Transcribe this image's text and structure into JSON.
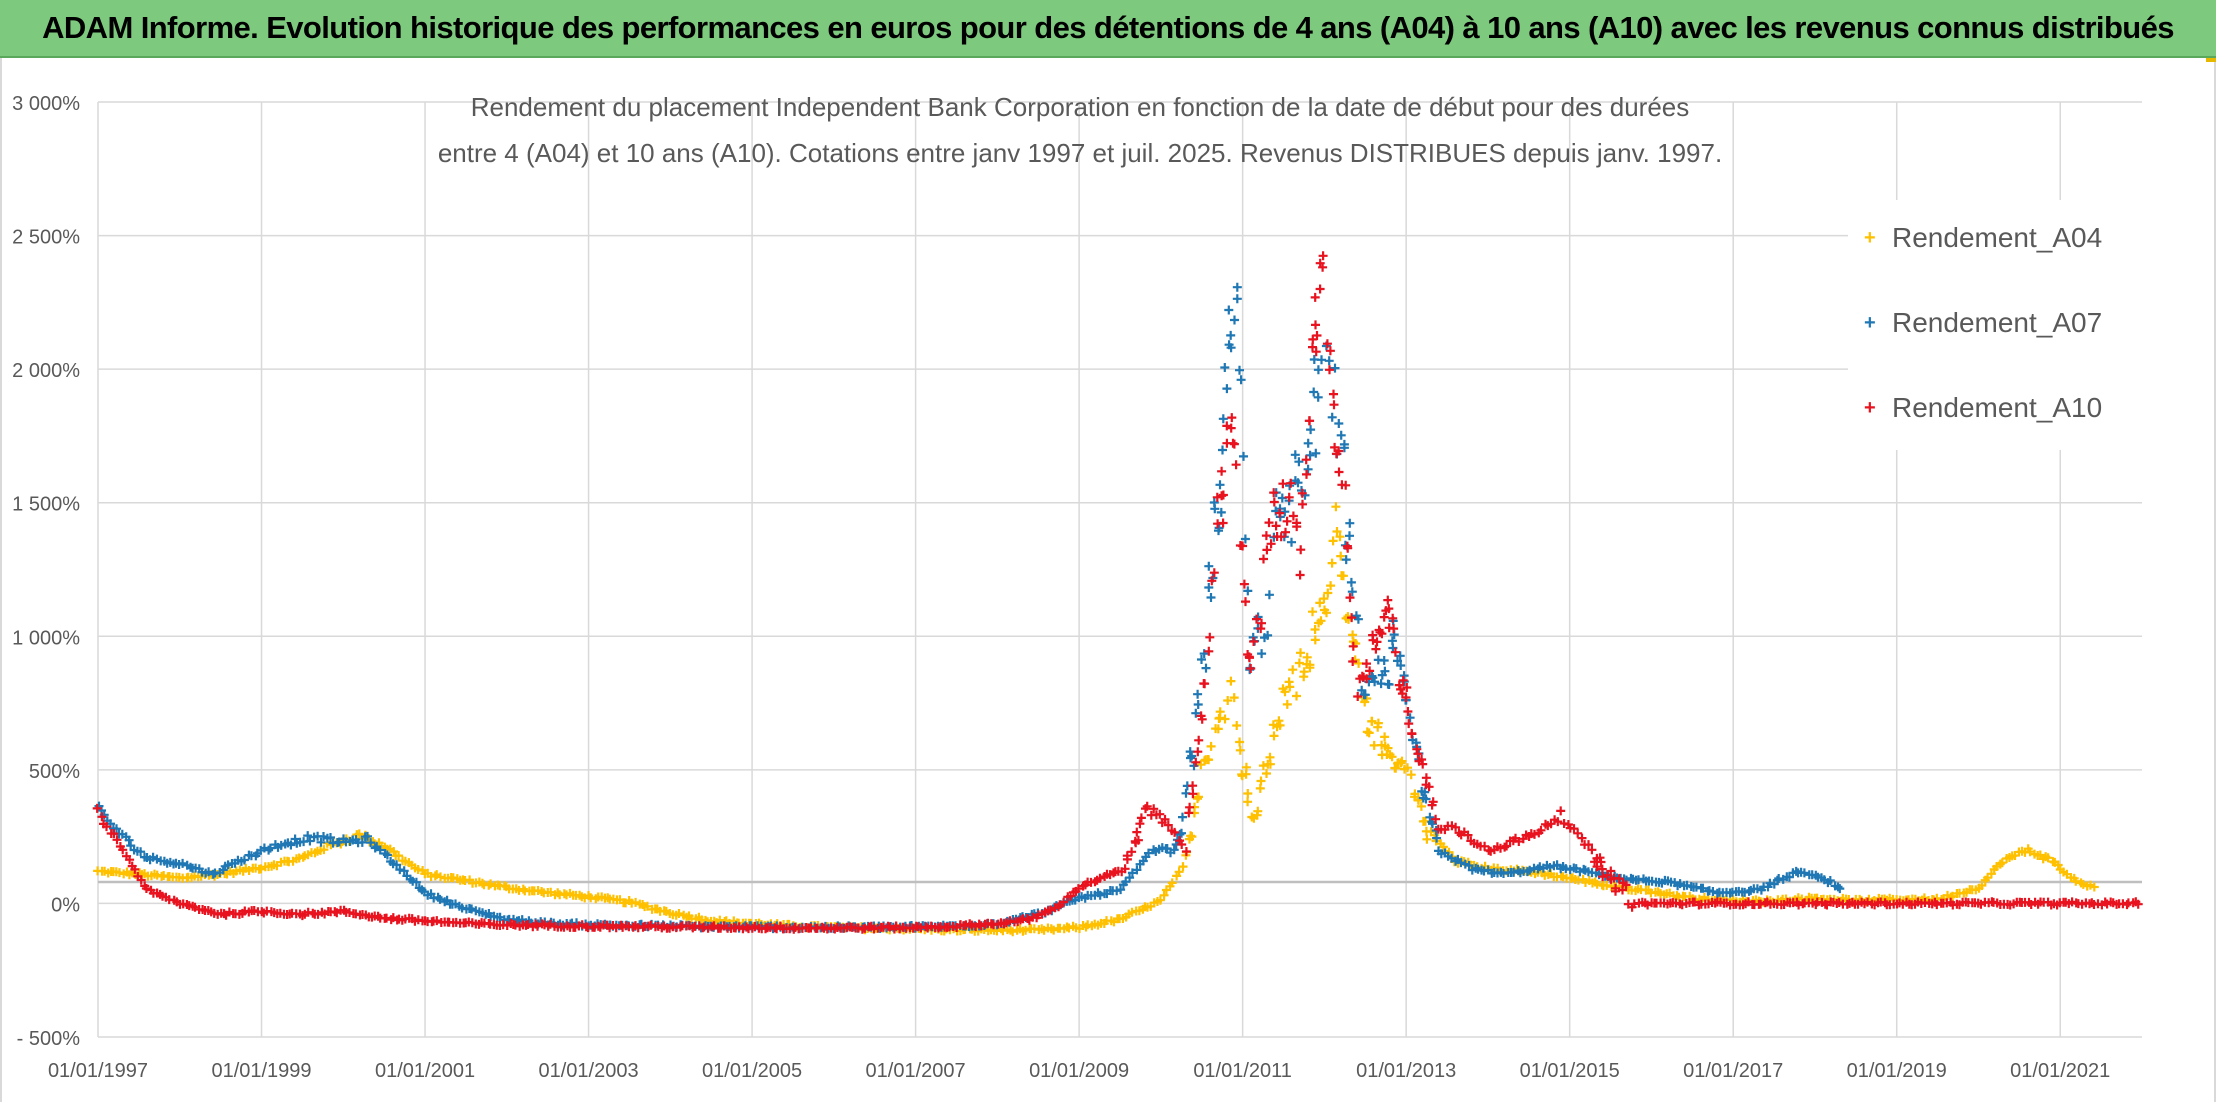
{
  "banner": {
    "title": "ADAM Informe. Evolution historique des performances en euros pour des détentions de 4 ans (A04) à 10 ans (A10) avec les revenus connus distribués"
  },
  "chart_data": {
    "type": "scatter",
    "title_line_1": "Rendement du placement Independent Bank Corporation en fonction de la date de début pour des durées",
    "title_line_2": "entre 4 (A04) et 10 ans (A10). Cotations entre janv 1997 et juil. 2025. Revenus DISTRIBUES depuis janv. 1997.",
    "xlabel": "",
    "ylabel": "",
    "x_unit": "year",
    "xlim": [
      1997.0,
      2022.0
    ],
    "ylim": [
      -500,
      3000
    ],
    "x_ticks": [
      1997,
      1999,
      2001,
      2003,
      2005,
      2007,
      2009,
      2011,
      2013,
      2015,
      2017,
      2019,
      2021
    ],
    "x_tick_labels": [
      "01/01/1997",
      "01/01/1999",
      "01/01/2001",
      "01/01/2003",
      "01/01/2005",
      "01/01/2007",
      "01/01/2009",
      "01/01/2011",
      "01/01/2013",
      "01/01/2015",
      "01/01/2017",
      "01/01/2019",
      "01/01/2021"
    ],
    "y_ticks": [
      -500,
      0,
      500,
      1000,
      1500,
      2000,
      2500,
      3000
    ],
    "y_tick_labels": [
      "- 500%",
      "0%",
      "500%",
      "1 000%",
      "1 500%",
      "2 000%",
      "2 500%",
      "3 000%"
    ],
    "grid": true,
    "marker": "+",
    "legend_position": "top-right",
    "reference_line_y": 80,
    "series": [
      {
        "name": "Rendement_A04",
        "color": "#ffc000",
        "points": [
          [
            1997.0,
            120
          ],
          [
            1997.5,
            110
          ],
          [
            1998.0,
            95
          ],
          [
            1998.5,
            110
          ],
          [
            1999.0,
            135
          ],
          [
            1999.5,
            170
          ],
          [
            1999.8,
            215
          ],
          [
            2000.2,
            255
          ],
          [
            2000.5,
            215
          ],
          [
            2000.8,
            150
          ],
          [
            2001.0,
            110
          ],
          [
            2001.5,
            85
          ],
          [
            2002.0,
            60
          ],
          [
            2002.5,
            40
          ],
          [
            2003.0,
            25
          ],
          [
            2003.5,
            5
          ],
          [
            2004.0,
            -35
          ],
          [
            2004.5,
            -65
          ],
          [
            2005.0,
            -75
          ],
          [
            2005.5,
            -85
          ],
          [
            2006.0,
            -90
          ],
          [
            2006.5,
            -93
          ],
          [
            2007.0,
            -95
          ],
          [
            2007.5,
            -100
          ],
          [
            2008.0,
            -100
          ],
          [
            2008.5,
            -100
          ],
          [
            2009.0,
            -90
          ],
          [
            2009.5,
            -60
          ],
          [
            2010.0,
            10
          ],
          [
            2010.3,
            150
          ],
          [
            2010.5,
            500
          ],
          [
            2010.7,
            680
          ],
          [
            2010.85,
            820
          ],
          [
            2011.0,
            520
          ],
          [
            2011.15,
            300
          ],
          [
            2011.3,
            560
          ],
          [
            2011.5,
            750
          ],
          [
            2011.7,
            870
          ],
          [
            2011.9,
            1050
          ],
          [
            2012.0,
            1180
          ],
          [
            2012.15,
            1300
          ],
          [
            2012.3,
            1050
          ],
          [
            2012.5,
            720
          ],
          [
            2012.7,
            580
          ],
          [
            2012.9,
            550
          ],
          [
            2013.1,
            420
          ],
          [
            2013.3,
            260
          ],
          [
            2013.6,
            160
          ],
          [
            2014.0,
            130
          ],
          [
            2014.5,
            120
          ],
          [
            2015.0,
            95
          ],
          [
            2015.5,
            65
          ],
          [
            2016.0,
            45
          ],
          [
            2016.5,
            20
          ],
          [
            2017.0,
            10
          ],
          [
            2017.5,
            10
          ],
          [
            2018.0,
            20
          ],
          [
            2018.5,
            10
          ],
          [
            2019.0,
            15
          ],
          [
            2019.5,
            15
          ],
          [
            2020.0,
            60
          ],
          [
            2020.3,
            160
          ],
          [
            2020.6,
            200
          ],
          [
            2020.9,
            160
          ],
          [
            2021.2,
            80
          ],
          [
            2021.45,
            60
          ]
        ]
      },
      {
        "name": "Rendement_A07",
        "color": "#1f77b4",
        "points": [
          [
            1997.0,
            350
          ],
          [
            1997.3,
            250
          ],
          [
            1997.6,
            170
          ],
          [
            1998.0,
            150
          ],
          [
            1998.4,
            110
          ],
          [
            1998.8,
            170
          ],
          [
            1999.2,
            220
          ],
          [
            1999.6,
            245
          ],
          [
            2000.0,
            230
          ],
          [
            2000.3,
            240
          ],
          [
            2000.7,
            130
          ],
          [
            2001.0,
            40
          ],
          [
            2001.5,
            -20
          ],
          [
            2002.0,
            -60
          ],
          [
            2002.5,
            -75
          ],
          [
            2003.0,
            -80
          ],
          [
            2004.0,
            -85
          ],
          [
            2005.0,
            -88
          ],
          [
            2006.0,
            -90
          ],
          [
            2007.0,
            -88
          ],
          [
            2007.5,
            -85
          ],
          [
            2008.0,
            -75
          ],
          [
            2008.5,
            -40
          ],
          [
            2009.0,
            20
          ],
          [
            2009.5,
            50
          ],
          [
            2009.9,
            200
          ],
          [
            2010.2,
            200
          ],
          [
            2010.5,
            850
          ],
          [
            2010.7,
            1500
          ],
          [
            2010.8,
            1850
          ],
          [
            2010.9,
            2300
          ],
          [
            2011.0,
            1700
          ],
          [
            2011.1,
            900
          ],
          [
            2011.3,
            1100
          ],
          [
            2011.45,
            1560
          ],
          [
            2011.6,
            1450
          ],
          [
            2011.8,
            1600
          ],
          [
            2011.9,
            1850
          ],
          [
            2012.05,
            1950
          ],
          [
            2012.2,
            1750
          ],
          [
            2012.3,
            1300
          ],
          [
            2012.5,
            800
          ],
          [
            2012.7,
            850
          ],
          [
            2012.9,
            950
          ],
          [
            2013.0,
            700
          ],
          [
            2013.2,
            450
          ],
          [
            2013.4,
            200
          ],
          [
            2013.8,
            130
          ],
          [
            2014.2,
            110
          ],
          [
            2014.8,
            140
          ],
          [
            2015.2,
            120
          ],
          [
            2015.7,
            90
          ],
          [
            2016.2,
            80
          ],
          [
            2016.8,
            40
          ],
          [
            2017.3,
            50
          ],
          [
            2017.8,
            120
          ],
          [
            2018.2,
            80
          ],
          [
            2018.35,
            40
          ]
        ]
      },
      {
        "name": "Rendement_A10",
        "color": "#e8131f",
        "points": [
          [
            1997.0,
            340
          ],
          [
            1997.3,
            200
          ],
          [
            1997.6,
            50
          ],
          [
            1998.0,
            0
          ],
          [
            1998.5,
            -40
          ],
          [
            1999.0,
            -30
          ],
          [
            1999.5,
            -40
          ],
          [
            2000.0,
            -30
          ],
          [
            2000.5,
            -55
          ],
          [
            2001.0,
            -65
          ],
          [
            2001.5,
            -75
          ],
          [
            2002.0,
            -80
          ],
          [
            2003.0,
            -85
          ],
          [
            2004.0,
            -88
          ],
          [
            2005.0,
            -90
          ],
          [
            2006.0,
            -92
          ],
          [
            2007.0,
            -90
          ],
          [
            2007.5,
            -85
          ],
          [
            2008.0,
            -75
          ],
          [
            2008.4,
            -60
          ],
          [
            2008.7,
            -20
          ],
          [
            2009.0,
            60
          ],
          [
            2009.3,
            100
          ],
          [
            2009.6,
            130
          ],
          [
            2009.8,
            360
          ],
          [
            2010.1,
            300
          ],
          [
            2010.3,
            200
          ],
          [
            2010.5,
            700
          ],
          [
            2010.7,
            1400
          ],
          [
            2010.85,
            1850
          ],
          [
            2011.0,
            1300
          ],
          [
            2011.1,
            850
          ],
          [
            2011.3,
            1300
          ],
          [
            2011.5,
            1500
          ],
          [
            2011.7,
            1400
          ],
          [
            2011.85,
            2000
          ],
          [
            2011.95,
            2350
          ],
          [
            2012.1,
            1900
          ],
          [
            2012.25,
            1500
          ],
          [
            2012.4,
            800
          ],
          [
            2012.6,
            950
          ],
          [
            2012.8,
            1050
          ],
          [
            2013.0,
            750
          ],
          [
            2013.2,
            500
          ],
          [
            2013.4,
            280
          ],
          [
            2013.6,
            280
          ],
          [
            2014.0,
            200
          ],
          [
            2014.5,
            250
          ],
          [
            2014.9,
            330
          ],
          [
            2015.3,
            180
          ],
          [
            2015.8,
            0
          ],
          [
            2016.5,
            0
          ],
          [
            2017.0,
            0
          ],
          [
            2017.5,
            0
          ],
          [
            2018.0,
            0
          ],
          [
            2018.5,
            0
          ],
          [
            2019.0,
            0
          ],
          [
            2019.5,
            0
          ],
          [
            2020.0,
            0
          ],
          [
            2020.5,
            0
          ],
          [
            2021.0,
            0
          ],
          [
            2021.5,
            0
          ],
          [
            2022.0,
            0
          ]
        ]
      }
    ]
  }
}
